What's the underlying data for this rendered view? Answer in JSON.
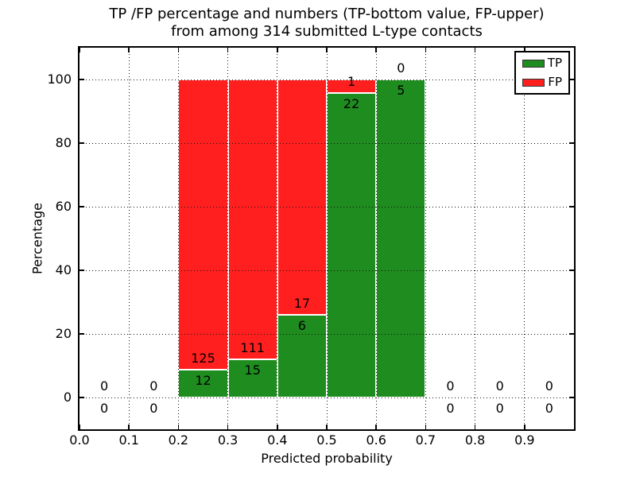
{
  "chart_data": {
    "type": "bar",
    "stacked": true,
    "title_line1": "TP /FP percentage and numbers (TP-bottom value, FP-upper)",
    "title_line2": "from among 314 submitted L-type contacts",
    "xlabel": "Predicted probability",
    "ylabel": "Percentage",
    "xlim": [
      0.0,
      1.0
    ],
    "ylim": [
      -10,
      110
    ],
    "x_tick_labels": [
      "0.0",
      "0.1",
      "0.2",
      "0.3",
      "0.4",
      "0.5",
      "0.6",
      "0.7",
      "0.8",
      "0.9"
    ],
    "y_tick_values": [
      0,
      20,
      40,
      60,
      80,
      100
    ],
    "grid": "dotted",
    "bin_width": 0.1,
    "bin_starts": [
      0.0,
      0.1,
      0.2,
      0.3,
      0.4,
      0.5,
      0.6,
      0.7,
      0.8,
      0.9
    ],
    "series": [
      {
        "name": "TP",
        "color": "#1e8c1e",
        "counts": [
          0,
          0,
          12,
          15,
          6,
          22,
          5,
          0,
          0,
          0
        ]
      },
      {
        "name": "FP",
        "color": "#ff1f1f",
        "counts": [
          0,
          0,
          125,
          111,
          17,
          1,
          0,
          0,
          0,
          0
        ]
      }
    ],
    "tp_percent_of_bin": [
      null,
      null,
      8.76,
      11.9,
      26.09,
      95.65,
      100.0,
      null,
      null,
      null
    ],
    "total_submitted": 314,
    "annotation_rule": "FP count shown above stack boundary, TP count below it; empty bins show 0 over 0 at baseline",
    "legend_position": "upper-right",
    "colors": {
      "tp": "#1e8c1e",
      "fp": "#ff1f1f",
      "bar_edge": "#ffffff",
      "grid": "#141414",
      "text": "#000000",
      "background": "#ffffff"
    }
  }
}
